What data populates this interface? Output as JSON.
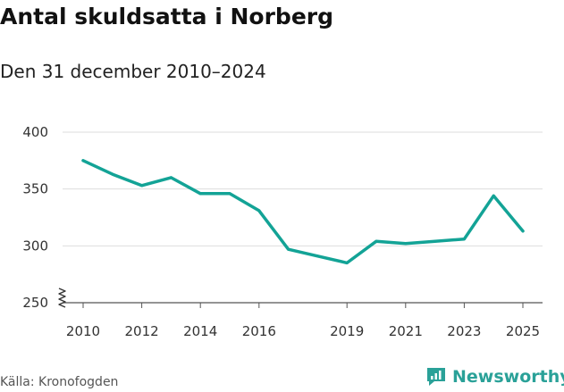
{
  "header": {
    "title": "Antal skuldsatta i Norberg",
    "subtitle": "Den 31 december 2010–2024"
  },
  "footer": {
    "source": "Källa: Kronofogden",
    "brand": "Newsworthy"
  },
  "colors": {
    "line": "#13a396",
    "grid": "#dddddd",
    "brand": "#2aa198"
  },
  "chart_data": {
    "type": "line",
    "title": "Antal skuldsatta i Norberg",
    "subtitle": "Den 31 december 2010–2024",
    "x": [
      2010,
      2011,
      2012,
      2013,
      2014,
      2015,
      2016,
      2017,
      2018,
      2019,
      2020,
      2021,
      2022,
      2023,
      2024,
      2025
    ],
    "values": [
      375,
      363,
      353,
      360,
      346,
      346,
      331,
      297,
      291,
      285,
      304,
      302,
      304,
      306,
      344,
      313
    ],
    "x_ticks": [
      "2010",
      "2012",
      "2014",
      "2016",
      "2019",
      "2021",
      "2023",
      "2025"
    ],
    "x_tick_values": [
      2010,
      2012,
      2014,
      2016,
      2019,
      2021,
      2023,
      2025
    ],
    "y_ticks": [
      "250",
      "300",
      "350",
      "400"
    ],
    "y_tick_values": [
      250,
      300,
      350,
      400
    ],
    "ylim": [
      250,
      400
    ],
    "xlim": [
      2010,
      2025
    ],
    "y_axis_break": true,
    "grid": true,
    "legend": "none"
  }
}
